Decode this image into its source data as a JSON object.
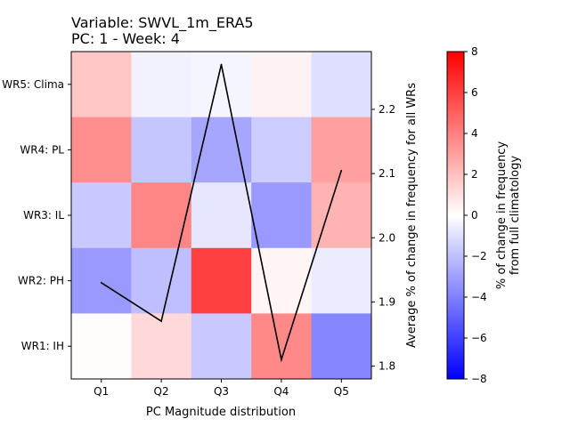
{
  "chart_data": {
    "type": "heatmap",
    "title_line1": "Variable: SWVL_1m_ERA5",
    "title_line2": "PC: 1 - Week: 4",
    "xlabel": "PC Magnitude distribution",
    "categories": [
      "Q1",
      "Q2",
      "Q3",
      "Q4",
      "Q5"
    ],
    "rows": [
      "WR5: Clima",
      "WR4: PL",
      "WR3: IL",
      "WR2: PH",
      "WR1: IH"
    ],
    "values": [
      [
        1.8,
        -0.4,
        -0.3,
        0.4,
        -1.0
      ],
      [
        3.5,
        -1.8,
        -2.8,
        -1.6,
        3.0
      ],
      [
        -1.7,
        3.8,
        -0.8,
        -3.2,
        2.4
      ],
      [
        -3.2,
        -2.0,
        6.0,
        0.3,
        -0.6
      ],
      [
        0.1,
        1.2,
        -1.7,
        3.7,
        -3.8
      ]
    ],
    "colorbar": {
      "label_line1": "% of change in frequency",
      "label_line2": "from full climatology",
      "range": [
        -8,
        8
      ],
      "ticks": [
        -8,
        -6,
        -4,
        -2,
        0,
        2,
        4,
        6,
        8
      ]
    },
    "secondary_axis": {
      "label": "Average % of change in frequency for all WRs",
      "range": [
        1.78,
        2.29
      ],
      "ticks": [
        "1.8",
        "1.9",
        "2.0",
        "2.1",
        "2.2"
      ],
      "line_values": [
        1.93,
        1.87,
        2.27,
        1.81,
        2.105
      ]
    }
  }
}
